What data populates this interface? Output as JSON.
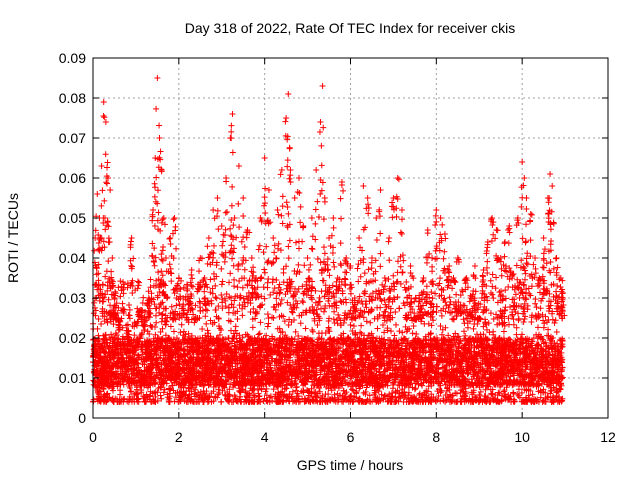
{
  "chart_data": {
    "type": "scatter",
    "title": "Day 318 of 2022, Rate Of TEC Index for receiver ckis",
    "xlabel": "GPS time / hours",
    "ylabel": "ROTI / TECUs",
    "xlim": [
      0,
      12
    ],
    "ylim": [
      0,
      0.09
    ],
    "xticks": [
      "0",
      "2",
      "4",
      "6",
      "8",
      "10",
      "12"
    ],
    "yticks": [
      "0",
      "0.01",
      "0.02",
      "0.03",
      "0.04",
      "0.05",
      "0.06",
      "0.07",
      "0.08",
      "0.09"
    ],
    "grid": true,
    "legend": "none",
    "marker": "plus",
    "color": "#ff0000",
    "x_data_range": [
      0,
      10.95
    ],
    "series": [
      {
        "x": [
          0.0,
          0.05,
          0.1,
          0.15,
          0.2,
          0.25,
          0.3,
          0.35,
          0.4,
          0.45,
          0.5,
          0.55,
          0.6,
          0.7,
          0.8,
          0.9,
          1.0,
          1.1,
          1.2,
          1.3,
          1.4,
          1.45,
          1.5,
          1.55,
          1.6,
          1.65,
          1.7,
          1.8,
          1.9,
          2.0,
          2.1,
          2.2,
          2.3,
          2.4,
          2.5,
          2.6,
          2.7,
          2.8,
          2.9,
          3.0,
          3.1,
          3.2,
          3.25,
          3.3,
          3.4,
          3.5,
          3.6,
          3.7,
          3.8,
          3.9,
          4.0,
          4.1,
          4.2,
          4.3,
          4.4,
          4.5,
          4.55,
          4.6,
          4.7,
          4.8,
          4.9,
          5.0,
          5.1,
          5.2,
          5.3,
          5.35,
          5.4,
          5.5,
          5.6,
          5.7,
          5.8,
          5.9,
          6.0,
          6.1,
          6.2,
          6.3,
          6.4,
          6.5,
          6.6,
          6.7,
          6.8,
          6.9,
          7.0,
          7.1,
          7.2,
          7.3,
          7.4,
          7.5,
          7.6,
          7.7,
          7.8,
          7.9,
          8.0,
          8.1,
          8.2,
          8.3,
          8.4,
          8.5,
          8.6,
          8.7,
          8.8,
          8.9,
          9.0,
          9.1,
          9.2,
          9.3,
          9.4,
          9.5,
          9.6,
          9.7,
          9.8,
          9.9,
          10.0,
          10.05,
          10.1,
          10.2,
          10.3,
          10.4,
          10.5,
          10.6,
          10.65,
          10.7,
          10.8,
          10.9,
          10.95
        ],
        "y": [
          0.014,
          0.045,
          0.056,
          0.05,
          0.063,
          0.079,
          0.074,
          0.06,
          0.057,
          0.04,
          0.03,
          0.025,
          0.022,
          0.034,
          0.02,
          0.045,
          0.018,
          0.027,
          0.022,
          0.03,
          0.052,
          0.065,
          0.085,
          0.07,
          0.062,
          0.05,
          0.04,
          0.045,
          0.05,
          0.035,
          0.03,
          0.033,
          0.037,
          0.025,
          0.04,
          0.035,
          0.045,
          0.052,
          0.055,
          0.048,
          0.06,
          0.07,
          0.076,
          0.05,
          0.063,
          0.055,
          0.047,
          0.04,
          0.035,
          0.05,
          0.065,
          0.057,
          0.045,
          0.052,
          0.062,
          0.075,
          0.081,
          0.062,
          0.055,
          0.06,
          0.048,
          0.04,
          0.05,
          0.062,
          0.074,
          0.083,
          0.055,
          0.045,
          0.05,
          0.035,
          0.059,
          0.04,
          0.038,
          0.03,
          0.045,
          0.058,
          0.055,
          0.04,
          0.05,
          0.057,
          0.035,
          0.045,
          0.055,
          0.06,
          0.052,
          0.034,
          0.038,
          0.025,
          0.03,
          0.035,
          0.047,
          0.04,
          0.052,
          0.05,
          0.046,
          0.038,
          0.035,
          0.04,
          0.032,
          0.035,
          0.03,
          0.038,
          0.025,
          0.037,
          0.044,
          0.05,
          0.047,
          0.04,
          0.044,
          0.048,
          0.036,
          0.05,
          0.064,
          0.06,
          0.055,
          0.051,
          0.04,
          0.035,
          0.045,
          0.055,
          0.061,
          0.058,
          0.04,
          0.035,
          0.03
        ]
      }
    ],
    "bulk_band": [
      0.004,
      0.035
    ],
    "dense_core": [
      0.008,
      0.02
    ]
  }
}
